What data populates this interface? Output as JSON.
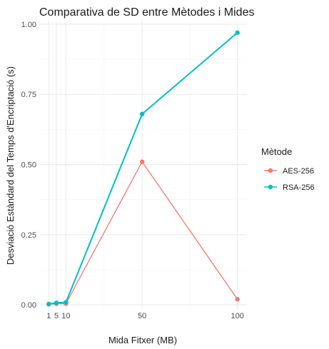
{
  "chart_data": {
    "type": "line",
    "title": "Comparativa de SD entre Mètodes i Mides",
    "xlabel": "Mida Fitxer (MB)",
    "ylabel": "Desviació Estàndard del Temps d'Encriptació (s)",
    "x": [
      1,
      5,
      10,
      50,
      100
    ],
    "x_tick_labels": [
      "1",
      "5",
      "10",
      "50",
      "100"
    ],
    "y_tick_labels": [
      "0.00",
      "0.25",
      "0.50",
      "0.75",
      "1.00"
    ],
    "xlim": [
      -4,
      105
    ],
    "ylim": [
      -0.015,
      1.01
    ],
    "grid": true,
    "legend_title": "Mètode",
    "legend_position": "right",
    "series": [
      {
        "name": "AES-256",
        "color": "#F8766D",
        "values": [
          0.002,
          0.004,
          0.004,
          0.51,
          0.02
        ]
      },
      {
        "name": "RSA-256",
        "color": "#00BFC4",
        "values": [
          0.003,
          0.007,
          0.009,
          0.68,
          0.97
        ]
      }
    ]
  }
}
